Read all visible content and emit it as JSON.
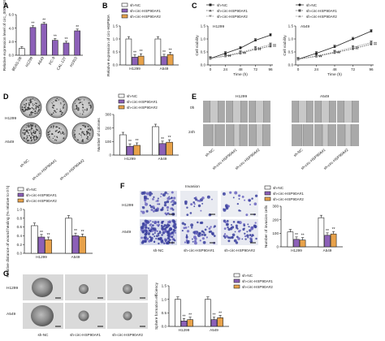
{
  "colors": {
    "navy": "#232a5e",
    "purple": "#8c60b8",
    "orange": "#e8a24a",
    "white": "#ffffff",
    "black": "#222222"
  },
  "panels": {
    "A": {
      "letter": "A",
      "ylabel": "Relative expression level of circ_0001339",
      "asterisk": "**"
    },
    "B": {
      "letter": "B",
      "ylabel": "Relative expression of circ-HSP90A",
      "asterisk": "**"
    },
    "C": {
      "letter": "C",
      "title_h1299": "H1299",
      "title_a549": "A549",
      "ylabel": "Cell viability",
      "xlabel": "Time (h)",
      "asterisk": "**"
    },
    "D": {
      "letter": "D",
      "row1": "H1299",
      "row2": "A549",
      "cols": [
        "sh-NC",
        "sh-circ-HSP90A#1",
        "sh-circ-HSP90A#2"
      ],
      "ylabel": "Number of colonies",
      "asterisk": "**"
    },
    "E": {
      "letter": "E",
      "title_h1299": "H1299",
      "title_a549": "A549",
      "row1": "0h",
      "row2": "24h",
      "cols": [
        "sh-NC",
        "sh-circ-HSP90A#1",
        "sh-circ-HSP90A#2"
      ],
      "ylabel": "Relative distance of wound healing (% relative to 0 h)",
      "asterisk": "**"
    },
    "F": {
      "letter": "F",
      "title": "Invasion",
      "row1": "H1299",
      "row2": "A549",
      "cols": [
        "sh-NC",
        "sh-circ-HSP90A#1",
        "sh-circ-HSP90A#2"
      ],
      "ylabel": "Number of invasion cells",
      "asterisk": "**"
    },
    "G": {
      "letter": "G",
      "row1": "H1299",
      "row2": "A549",
      "cols": [
        "sh-NC",
        "sh-circ-HSP90A#1",
        "sh-circ-HSP90A#2"
      ],
      "ylabel": "Sphere formation efficiency",
      "asterisk": "**"
    }
  },
  "legend": [
    "sh-NC",
    "sh-circ-HSP90A#1",
    "sh-circ-HSP90A#2"
  ],
  "chart_data": [
    {
      "id": "A",
      "type": "bar",
      "categories": [
        "BEAS-2B",
        "H1299",
        "A549",
        "PC-9",
        "CAL-12T",
        "H1915"
      ],
      "values": [
        1.0,
        4.1,
        4.6,
        2.2,
        1.8,
        3.6
      ],
      "ylabel": "Relative expression level of circ_0001339",
      "ylim": [
        0,
        6
      ],
      "yticks": [
        0,
        2,
        4,
        6
      ]
    },
    {
      "id": "B",
      "type": "bar",
      "categories": [
        "H1299",
        "A549"
      ],
      "series": [
        {
          "name": "sh-NC",
          "values": [
            1.0,
            1.0
          ]
        },
        {
          "name": "sh-circ-HSP90A#1",
          "values": [
            0.3,
            0.32
          ]
        },
        {
          "name": "sh-circ-HSP90A#2",
          "values": [
            0.34,
            0.4
          ]
        }
      ],
      "ylabel": "Relative expression of circ-HSP90A",
      "ylim": [
        0,
        1.5
      ],
      "yticks": [
        0.0,
        0.5,
        1.0,
        1.5
      ]
    },
    {
      "id": "C1",
      "type": "line",
      "title": "H1299",
      "x": [
        0,
        24,
        48,
        72,
        96
      ],
      "series": [
        {
          "name": "sh-NC",
          "values": [
            0.25,
            0.45,
            0.65,
            0.95,
            1.15
          ]
        },
        {
          "name": "sh-circ-HSP90A#1",
          "values": [
            0.25,
            0.34,
            0.45,
            0.6,
            0.72
          ]
        },
        {
          "name": "sh-circ-HSP90A#2",
          "values": [
            0.25,
            0.36,
            0.48,
            0.64,
            0.78
          ]
        }
      ],
      "xlabel": "Time (h)",
      "ylabel": "Cell viability",
      "ylim": [
        0,
        1.5
      ],
      "yticks": [
        0.0,
        0.5,
        1.0,
        1.5
      ]
    },
    {
      "id": "C2",
      "type": "line",
      "title": "A549",
      "x": [
        0,
        24,
        48,
        72,
        96
      ],
      "series": [
        {
          "name": "sh-NC",
          "values": [
            0.22,
            0.45,
            0.7,
            1.0,
            1.3
          ]
        },
        {
          "name": "sh-circ-HSP90A#1",
          "values": [
            0.22,
            0.33,
            0.47,
            0.62,
            0.8
          ]
        },
        {
          "name": "sh-circ-HSP90A#2",
          "values": [
            0.22,
            0.35,
            0.5,
            0.68,
            0.86
          ]
        }
      ],
      "xlabel": "Time (h)",
      "ylabel": "Cell viability",
      "ylim": [
        0,
        1.5
      ],
      "yticks": [
        0.0,
        0.5,
        1.0,
        1.5
      ]
    },
    {
      "id": "D",
      "type": "bar",
      "categories": [
        "H1299",
        "A549"
      ],
      "series": [
        {
          "name": "sh-NC",
          "values": [
            150,
            210
          ]
        },
        {
          "name": "sh-circ-HSP90A#1",
          "values": [
            65,
            85
          ]
        },
        {
          "name": "sh-circ-HSP90A#2",
          "values": [
            72,
            95
          ]
        }
      ],
      "ylabel": "Number of colonies",
      "ylim": [
        0,
        300
      ],
      "yticks": [
        0,
        100,
        200,
        300
      ]
    },
    {
      "id": "E",
      "type": "bar",
      "categories": [
        "H1299",
        "A549"
      ],
      "series": [
        {
          "name": "sh-NC",
          "values": [
            0.63,
            0.8
          ]
        },
        {
          "name": "sh-circ-HSP90A#1",
          "values": [
            0.37,
            0.4
          ]
        },
        {
          "name": "sh-circ-HSP90A#2",
          "values": [
            0.31,
            0.38
          ]
        }
      ],
      "ylabel": "Relative distance of wound healing (% relative to 0 h)",
      "ylim": [
        0,
        1.0
      ],
      "yticks": [
        0.0,
        0.2,
        0.4,
        0.6,
        0.8,
        1.0
      ]
    },
    {
      "id": "F",
      "type": "bar",
      "categories": [
        "H1299",
        "A549"
      ],
      "series": [
        {
          "name": "sh-NC",
          "values": [
            110,
            215
          ]
        },
        {
          "name": "sh-circ-HSP90A#1",
          "values": [
            55,
            85
          ]
        },
        {
          "name": "sh-circ-HSP90A#2",
          "values": [
            50,
            95
          ]
        }
      ],
      "ylabel": "Number of invasion cells",
      "ylim": [
        0,
        300
      ],
      "yticks": [
        0,
        100,
        200,
        300
      ]
    },
    {
      "id": "G",
      "type": "bar",
      "categories": [
        "H1299",
        "A549"
      ],
      "series": [
        {
          "name": "sh-NC",
          "values": [
            1.0,
            1.0
          ]
        },
        {
          "name": "sh-circ-HSP90A#1",
          "values": [
            0.2,
            0.25
          ]
        },
        {
          "name": "sh-circ-HSP90A#2",
          "values": [
            0.25,
            0.32
          ]
        }
      ],
      "ylabel": "Sphere formation efficiency",
      "ylim": [
        0,
        1.5
      ],
      "yticks": [
        0.0,
        0.5,
        1.0,
        1.5
      ]
    }
  ]
}
